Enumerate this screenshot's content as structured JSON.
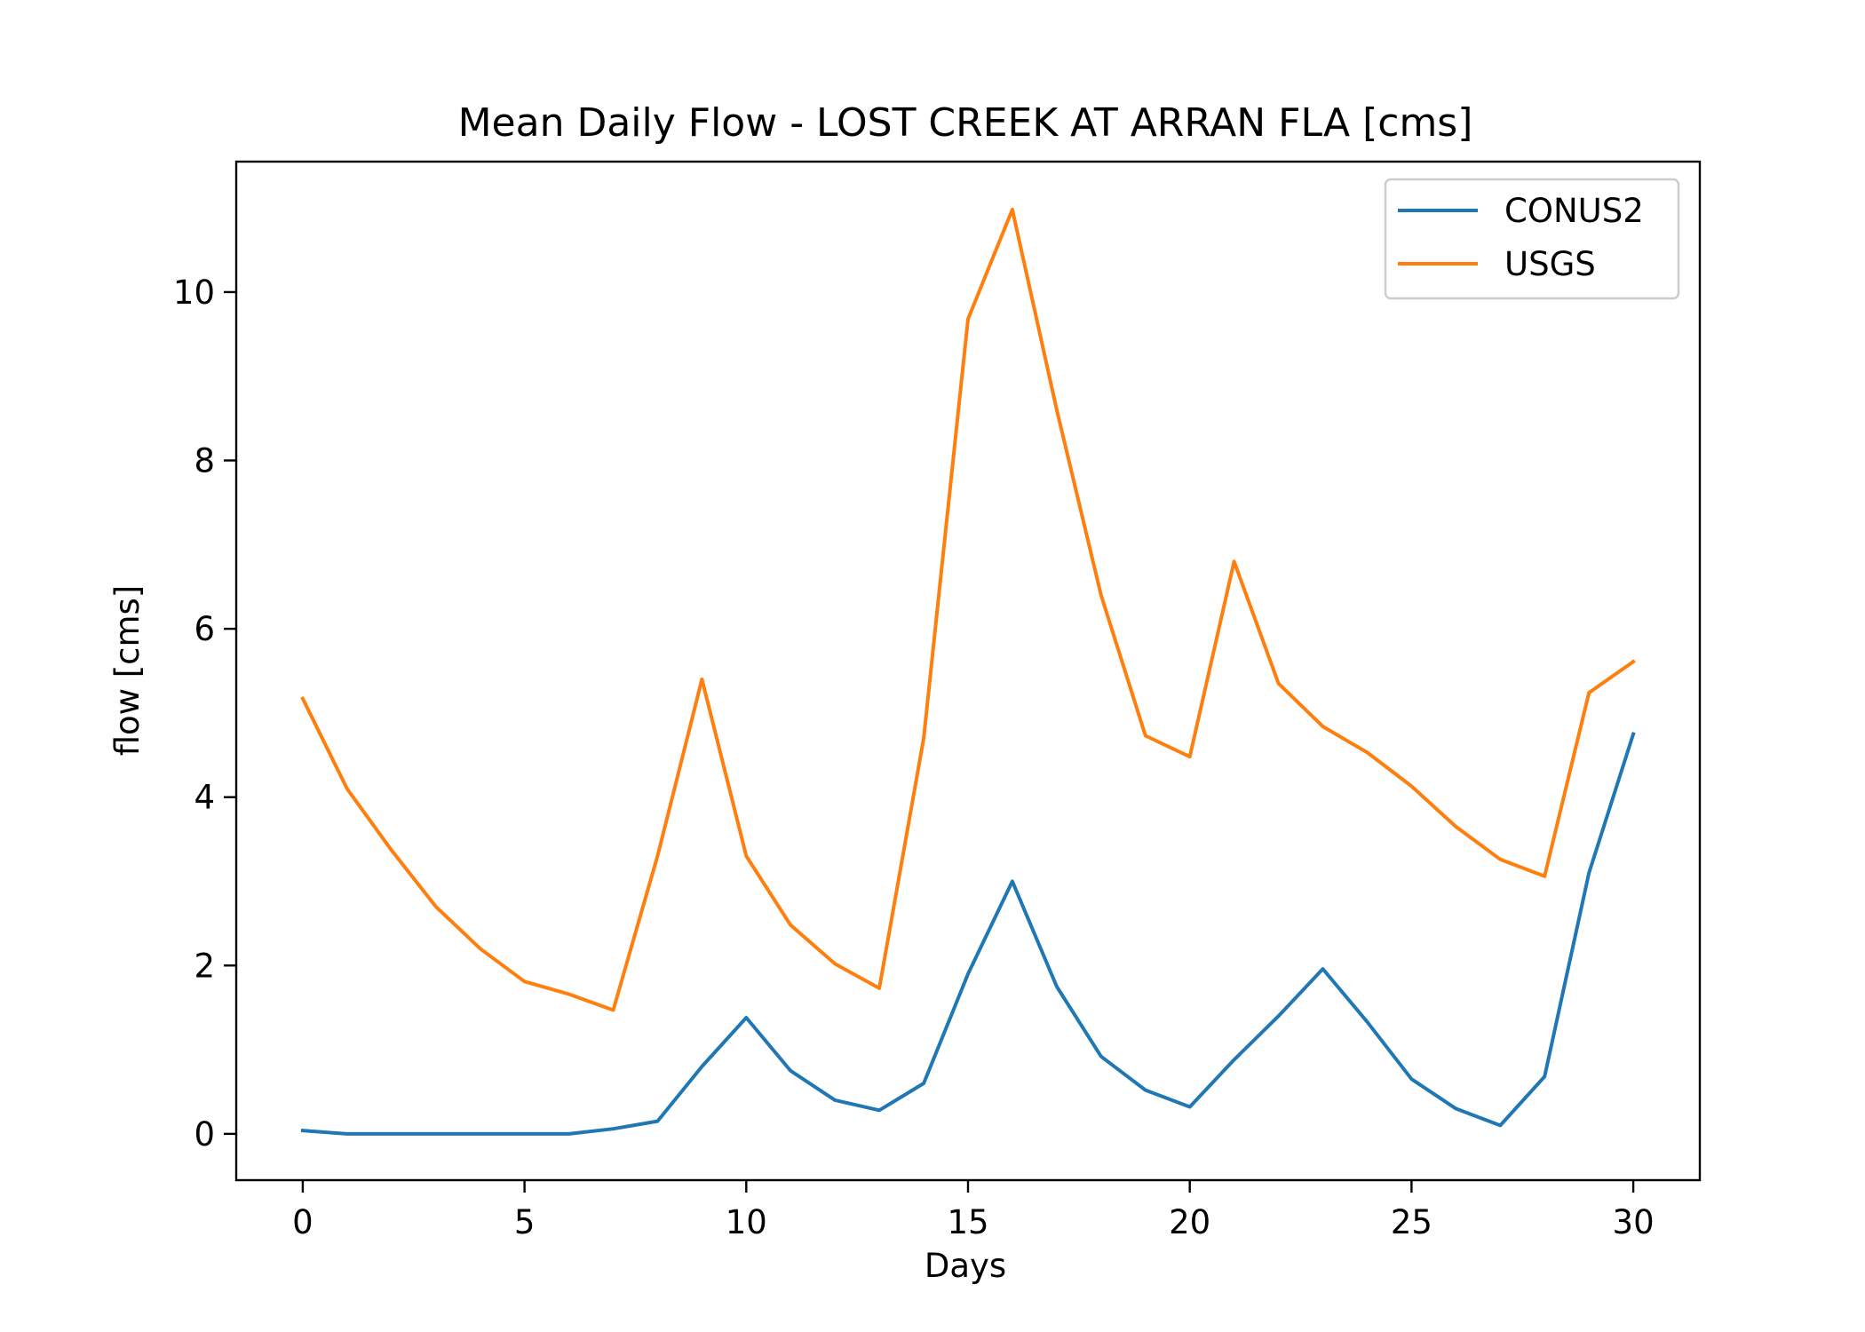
{
  "chart_data": {
    "type": "line",
    "title": "Mean Daily Flow - LOST CREEK AT ARRAN FLA [cms]",
    "xlabel": "Days",
    "ylabel": "flow [cms]",
    "xlim": [
      -1.5,
      31.5
    ],
    "ylim": [
      -0.55,
      11.55
    ],
    "xticks": [
      0,
      5,
      10,
      15,
      20,
      25,
      30
    ],
    "yticks": [
      0,
      2,
      4,
      6,
      8,
      10
    ],
    "grid": false,
    "legend_position": "upper right",
    "x": [
      0,
      1,
      2,
      3,
      4,
      5,
      6,
      7,
      8,
      9,
      10,
      11,
      12,
      13,
      14,
      15,
      16,
      17,
      18,
      19,
      20,
      21,
      22,
      23,
      24,
      25,
      26,
      27,
      28,
      29,
      30
    ],
    "series": [
      {
        "name": "CONUS2",
        "color": "#1f77b4",
        "values": [
          0.04,
          0.0,
          0.0,
          0.0,
          0.0,
          0.0,
          0.0,
          0.06,
          0.15,
          0.8,
          1.38,
          0.75,
          0.4,
          0.28,
          0.6,
          1.9,
          3.0,
          1.75,
          0.92,
          0.52,
          0.32,
          0.88,
          1.4,
          1.96,
          1.33,
          0.65,
          0.3,
          0.1,
          0.68,
          3.1,
          4.75
        ]
      },
      {
        "name": "USGS",
        "color": "#ff7f0e",
        "values": [
          5.17,
          4.1,
          3.37,
          2.7,
          2.2,
          1.81,
          1.66,
          1.47,
          3.3,
          5.4,
          3.3,
          2.48,
          2.02,
          1.73,
          4.7,
          9.68,
          10.98,
          8.6,
          6.4,
          4.73,
          4.48,
          6.8,
          5.35,
          4.84,
          4.53,
          4.13,
          3.65,
          3.26,
          3.06,
          5.24,
          5.61
        ]
      }
    ]
  }
}
